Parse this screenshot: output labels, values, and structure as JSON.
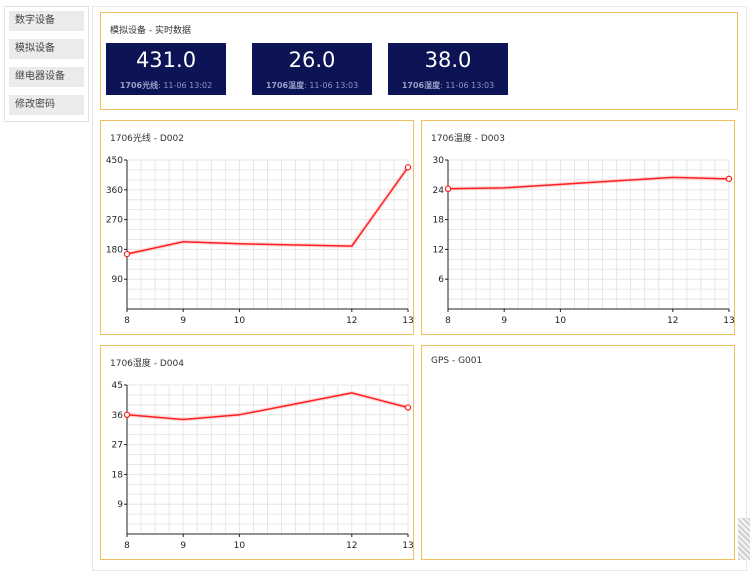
{
  "sidebar": {
    "items": [
      {
        "label": "数字设备"
      },
      {
        "label": "模拟设备"
      },
      {
        "label": "继电器设备"
      },
      {
        "label": "修改密码"
      }
    ]
  },
  "realtime": {
    "title": "模拟设备 - 实时数据",
    "tiles": [
      {
        "value": "431.0",
        "sensor": "1706光线",
        "time": "11-06 13:02"
      },
      {
        "value": "26.0",
        "sensor": "1706温度",
        "time": "11-06 13:03"
      },
      {
        "value": "38.0",
        "sensor": "1706湿度",
        "time": "11-06 13:03"
      }
    ]
  },
  "gps": {
    "title": "GPS - G001"
  },
  "footer": {
    "text": ""
  },
  "chart_data": [
    {
      "type": "line",
      "title": "1706光线 - D002",
      "x": [
        8,
        9,
        10,
        12,
        13
      ],
      "xlim": [
        8,
        13
      ],
      "ylim": [
        0,
        450
      ],
      "yticks": [
        90,
        180,
        270,
        360,
        450
      ],
      "series": [
        {
          "values": [
            166,
            203,
            197,
            190,
            428
          ],
          "color": "#ff1f1f"
        }
      ],
      "grid": true
    },
    {
      "type": "line",
      "title": "1706温度 - D003",
      "x": [
        8,
        9,
        10,
        12,
        13
      ],
      "xlim": [
        8,
        13
      ],
      "ylim": [
        0,
        30
      ],
      "yticks": [
        6,
        12,
        18,
        24,
        30
      ],
      "series": [
        {
          "values": [
            24.2,
            24.4,
            25.1,
            26.5,
            26.2
          ],
          "color": "#ff1f1f"
        }
      ],
      "grid": true
    },
    {
      "type": "line",
      "title": "1706湿度 - D004",
      "x": [
        8,
        9,
        10,
        12,
        13
      ],
      "xlim": [
        8,
        13
      ],
      "ylim": [
        0,
        45
      ],
      "yticks": [
        9,
        18,
        27,
        36,
        45
      ],
      "series": [
        {
          "values": [
            36,
            34.6,
            36,
            42.6,
            38.2
          ],
          "color": "#ff1f1f"
        }
      ],
      "grid": true
    }
  ]
}
